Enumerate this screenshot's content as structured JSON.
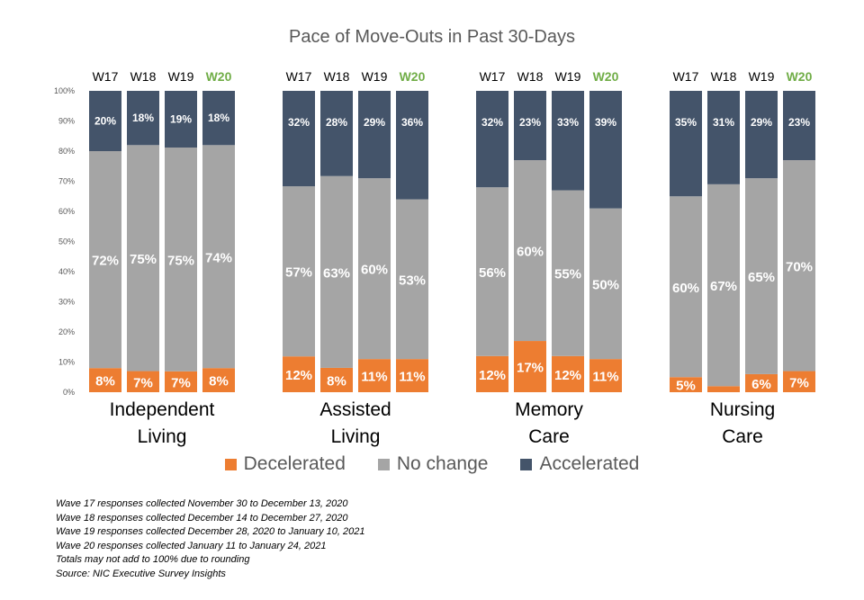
{
  "chart_data": {
    "type": "bar",
    "stacked": true,
    "title": "Pace of Move-Outs in Past 30-Days",
    "ylim": [
      0,
      1
    ],
    "y_ticks": [
      "0%",
      "10%",
      "20%",
      "30%",
      "40%",
      "50%",
      "60%",
      "70%",
      "80%",
      "90%",
      "100%"
    ],
    "waves": [
      "W17",
      "W18",
      "W19",
      "W20"
    ],
    "highlight_wave": "W20",
    "highlight_color": "#70AD47",
    "legend_position": "bottom",
    "series_meta": [
      {
        "name": "Decelerated",
        "color": "#ED7D31"
      },
      {
        "name": "No change",
        "color": "#A5A5A5"
      },
      {
        "name": "Accelerated",
        "color": "#44546A"
      }
    ],
    "groups": [
      {
        "label_lines": [
          "Independent",
          "Living"
        ],
        "bars": [
          {
            "wave": "W17",
            "values": [
              8,
              72,
              20
            ],
            "labels": [
              "8%",
              "72%",
              "20%"
            ]
          },
          {
            "wave": "W18",
            "values": [
              7,
              75,
              18
            ],
            "labels": [
              "7%",
              "75%",
              "18%"
            ]
          },
          {
            "wave": "W19",
            "values": [
              7,
              75,
              19
            ],
            "labels": [
              "7%",
              "75%",
              "19%"
            ]
          },
          {
            "wave": "W20",
            "values": [
              8,
              74,
              18
            ],
            "labels": [
              "8%",
              "74%",
              "18%"
            ]
          }
        ]
      },
      {
        "label_lines": [
          "Assisted",
          "Living"
        ],
        "bars": [
          {
            "wave": "W17",
            "values": [
              12,
              57,
              32
            ],
            "labels": [
              "12%",
              "57%",
              "32%"
            ]
          },
          {
            "wave": "W18",
            "values": [
              8,
              63,
              28
            ],
            "labels": [
              "8%",
              "63%",
              "28%"
            ]
          },
          {
            "wave": "W19",
            "values": [
              11,
              60,
              29
            ],
            "labels": [
              "11%",
              "60%",
              "29%"
            ]
          },
          {
            "wave": "W20",
            "values": [
              11,
              53,
              36
            ],
            "labels": [
              "11%",
              "53%",
              "36%"
            ]
          }
        ]
      },
      {
        "label_lines": [
          "Memory",
          "Care"
        ],
        "bars": [
          {
            "wave": "W17",
            "values": [
              12,
              56,
              32
            ],
            "labels": [
              "12%",
              "56%",
              "32%"
            ]
          },
          {
            "wave": "W18",
            "values": [
              17,
              60,
              23
            ],
            "labels": [
              "17%",
              "60%",
              "23%"
            ]
          },
          {
            "wave": "W19",
            "values": [
              12,
              55,
              33
            ],
            "labels": [
              "12%",
              "55%",
              "33%"
            ]
          },
          {
            "wave": "W20",
            "values": [
              11,
              50,
              39
            ],
            "labels": [
              "11%",
              "50%",
              "39%"
            ]
          }
        ]
      },
      {
        "label_lines": [
          "Nursing",
          "Care"
        ],
        "bars": [
          {
            "wave": "W17",
            "values": [
              5,
              60,
              35
            ],
            "labels": [
              "5%",
              "60%",
              "35%"
            ]
          },
          {
            "wave": "W18",
            "values": [
              2,
              67,
              31
            ],
            "labels": [
              "",
              "67%",
              "31%"
            ]
          },
          {
            "wave": "W19",
            "values": [
              6,
              65,
              29
            ],
            "labels": [
              "6%",
              "65%",
              "29%"
            ]
          },
          {
            "wave": "W20",
            "values": [
              7,
              70,
              23
            ],
            "labels": [
              "7%",
              "70%",
              "23%"
            ]
          }
        ]
      }
    ]
  },
  "notes": [
    "Wave 17 responses collected  November 30 to December 13, 2020",
    "Wave 18 responses collected  December 14 to December  27, 2020",
    "Wave 19 responses collected  December 28, 2020 to January 10, 2021",
    "Wave 20 responses collected  January 11 to January 24, 2021",
    "Totals may not add to 100% due to rounding",
    "Source: NIC Executive Survey Insights"
  ]
}
